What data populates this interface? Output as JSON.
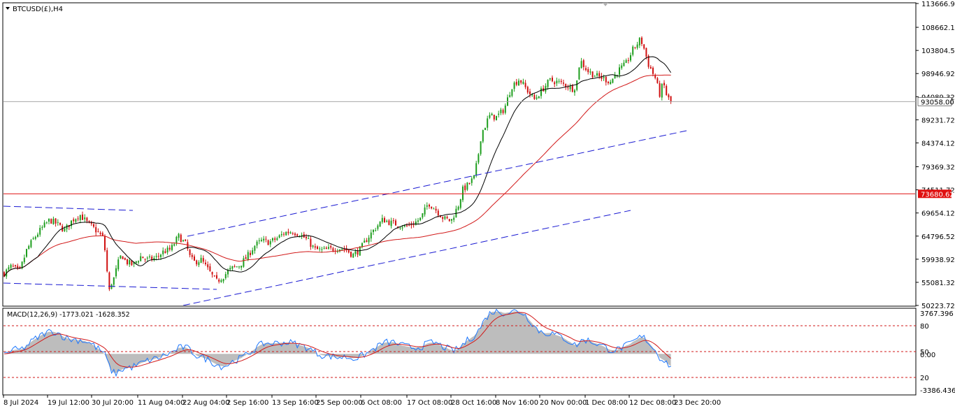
{
  "window": {
    "symbol_label": "BTCUSD(£),H4",
    "dropdown_icon": "triangle-down-icon",
    "scroll_marker_icon": "triangle-down-icon"
  },
  "colors": {
    "bull_candle": "#1e9e1e",
    "bear_candle": "#d01010",
    "ma_fast": "#000000",
    "ma_slow": "#d21a1a",
    "channel": "#1a1ad2",
    "support_line": "#e01010",
    "macd_main": "#1e78ff",
    "macd_signal": "#d21a1a",
    "macd_hist": "#bdbdbd",
    "macd_levels": "#d21a1a"
  },
  "chart_data": [
    {
      "type": "candlestick",
      "symbol": "BTCUSD(£)",
      "timeframe": "H4",
      "ylim": [
        50223.72,
        113666.9
      ],
      "y_ticks": [
        "113666.90",
        "108662.12",
        "103804.54",
        "98946.92",
        "94089.32",
        "89231.72",
        "84374.12",
        "79369.32",
        "74511.72",
        "69654.12",
        "64796.52",
        "59938.92",
        "55081.32",
        "50223.72"
      ],
      "current_price_label": "93058.00",
      "current_price": 93058.0,
      "level_label": "73680.62",
      "level_price": 73680.62,
      "x_labels": [
        "8 Jul 2024",
        "19 Jul 12:00",
        "30 Jul 20:00",
        "11 Aug 04:00",
        "22 Aug 04:00",
        "2 Sep 16:00",
        "13 Sep 16:00",
        "25 Sep 00:00",
        "6 Oct 08:00",
        "17 Oct 08:00",
        "28 Oct 16:00",
        "8 Nov 16:00",
        "20 Nov 00:00",
        "1 Dec 08:00",
        "12 Dec 08:00",
        "23 Dec 20:00"
      ],
      "close_path": [
        [
          0,
          57000
        ],
        [
          2,
          58500
        ],
        [
          4,
          57200
        ],
        [
          6,
          62000
        ],
        [
          8,
          64500
        ],
        [
          10,
          66500
        ],
        [
          12,
          68200
        ],
        [
          14,
          67300
        ],
        [
          16,
          66000
        ],
        [
          18,
          68200
        ],
        [
          20,
          69300
        ],
        [
          22,
          67500
        ],
        [
          24,
          66200
        ],
        [
          26,
          64500
        ],
        [
          27,
          60000
        ],
        [
          27.5,
          52000
        ],
        [
          28,
          54500
        ],
        [
          29,
          56000
        ],
        [
          30,
          59000
        ],
        [
          31,
          61000
        ],
        [
          32,
          59500
        ],
        [
          34,
          58700
        ],
        [
          36,
          60500
        ],
        [
          38,
          59800
        ],
        [
          40,
          60200
        ],
        [
          42,
          61500
        ],
        [
          44,
          62000
        ],
        [
          46,
          64800
        ],
        [
          48,
          63000
        ],
        [
          49,
          60500
        ],
        [
          50,
          59300
        ],
        [
          52,
          59800
        ],
        [
          54,
          57500
        ],
        [
          56,
          55200
        ],
        [
          58,
          56500
        ],
        [
          60,
          58000
        ],
        [
          62,
          58600
        ],
        [
          64,
          60300
        ],
        [
          66,
          62700
        ],
        [
          68,
          63800
        ],
        [
          70,
          63500
        ],
        [
          72,
          64300
        ],
        [
          74,
          65500
        ],
        [
          76,
          65800
        ],
        [
          78,
          65200
        ],
        [
          80,
          64000
        ],
        [
          82,
          62000
        ],
        [
          84,
          61800
        ],
        [
          86,
          62000
        ],
        [
          88,
          62300
        ],
        [
          90,
          62100
        ],
        [
          92,
          60800
        ],
        [
          94,
          62000
        ],
        [
          96,
          64500
        ],
        [
          98,
          66500
        ],
        [
          100,
          68300
        ],
        [
          102,
          67600
        ],
        [
          104,
          67200
        ],
        [
          106,
          66800
        ],
        [
          108,
          67400
        ],
        [
          110,
          68500
        ],
        [
          112,
          71800
        ],
        [
          114,
          70300
        ],
        [
          116,
          68500
        ],
        [
          118,
          68000
        ],
        [
          120,
          71500
        ],
        [
          121,
          74500
        ],
        [
          122,
          75200
        ],
        [
          124,
          77000
        ],
        [
          125,
          81000
        ],
        [
          126,
          86500
        ],
        [
          127,
          88000
        ],
        [
          128,
          90000
        ],
        [
          130,
          89800
        ],
        [
          132,
          91500
        ],
        [
          134,
          96300
        ],
        [
          136,
          97800
        ],
        [
          138,
          95500
        ],
        [
          140,
          93500
        ],
        [
          142,
          95500
        ],
        [
          144,
          97500
        ],
        [
          146,
          97200
        ],
        [
          148,
          96600
        ],
        [
          150,
          95800
        ],
        [
          151,
          96300
        ],
        [
          152,
          101800
        ],
        [
          154,
          99500
        ],
        [
          156,
          98500
        ],
        [
          158,
          98000
        ],
        [
          160,
          97200
        ],
        [
          162,
          99500
        ],
        [
          164,
          100800
        ],
        [
          166,
          104000
        ],
        [
          168,
          106200
        ],
        [
          169,
          104000
        ],
        [
          170,
          101000
        ],
        [
          172,
          97800
        ],
        [
          173,
          94500
        ],
        [
          174,
          97000
        ],
        [
          175,
          94000
        ],
        [
          176,
          93058
        ]
      ],
      "moving_averages": [
        {
          "period_style": "fast",
          "color": "#000000"
        },
        {
          "period_style": "slow",
          "color": "#d21a1a"
        }
      ]
    },
    {
      "type": "line",
      "indicator_label": "MACD(12,26,9) -1773.021 -1628.352",
      "indicator": "MACD(12,26,9)",
      "main_value": -1773.021,
      "signal_value": -1628.352,
      "ylim": [
        -3386.436,
        3767.396
      ],
      "right_labels": [
        "3767.396",
        "80",
        "50",
        "0.00",
        "20",
        "-3386.436"
      ]
    }
  ]
}
